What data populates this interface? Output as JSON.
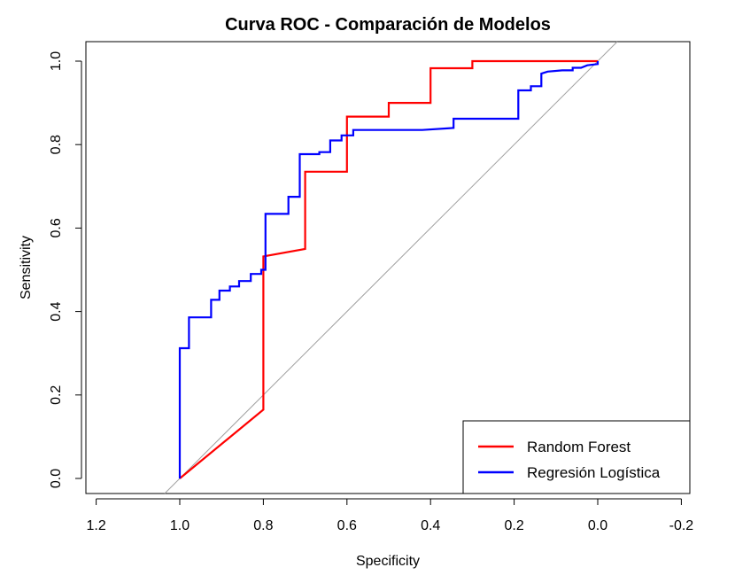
{
  "chart_data": {
    "type": "line",
    "title": "Curva ROC - Comparación de Modelos",
    "xlabel": "Specificity",
    "ylabel": "Sensitivity",
    "xlim": [
      1.2,
      -0.2
    ],
    "ylim": [
      0.0,
      1.0
    ],
    "x_reversed": true,
    "grid": false,
    "legend": "bottom-right",
    "x_ticks": [
      1.2,
      1.0,
      0.8,
      0.6,
      0.4,
      0.2,
      0.0,
      -0.2
    ],
    "x_tick_labels": [
      "1.2",
      "1.0",
      "0.8",
      "0.6",
      "0.4",
      "0.2",
      "0.0",
      "-0.2"
    ],
    "y_ticks": [
      0.0,
      0.2,
      0.4,
      0.6,
      0.8,
      1.0
    ],
    "y_tick_labels": [
      "0.0",
      "0.2",
      "0.4",
      "0.6",
      "0.8",
      "1.0"
    ],
    "reference_line": {
      "from": [
        1.0,
        0.0
      ],
      "to": [
        0.0,
        1.0
      ],
      "color": "#a0a0a0"
    },
    "series": [
      {
        "name": "Random Forest",
        "color": "#ff0000",
        "x": [
          1.0,
          0.8,
          0.8,
          0.7,
          0.7,
          0.6,
          0.6,
          0.5,
          0.5,
          0.4,
          0.4,
          0.3,
          0.3,
          0.0
        ],
        "y": [
          0.0,
          0.165,
          0.532,
          0.55,
          0.735,
          0.735,
          0.867,
          0.867,
          0.9,
          0.9,
          0.983,
          0.983,
          1.0,
          1.0
        ]
      },
      {
        "name": "Regresión Logística",
        "color": "#0000ff",
        "x": [
          1.0,
          1.0,
          0.978,
          0.978,
          0.925,
          0.925,
          0.905,
          0.905,
          0.88,
          0.88,
          0.858,
          0.858,
          0.83,
          0.83,
          0.805,
          0.805,
          0.795,
          0.795,
          0.74,
          0.74,
          0.713,
          0.713,
          0.666,
          0.666,
          0.64,
          0.64,
          0.613,
          0.613,
          0.585,
          0.585,
          0.42,
          0.345,
          0.345,
          0.19,
          0.19,
          0.16,
          0.16,
          0.135,
          0.135,
          0.12,
          0.085,
          0.06,
          0.06,
          0.04,
          0.025,
          0.025,
          0.0,
          0.0
        ],
        "y": [
          0.0,
          0.312,
          0.312,
          0.386,
          0.386,
          0.428,
          0.428,
          0.45,
          0.45,
          0.46,
          0.46,
          0.473,
          0.473,
          0.49,
          0.49,
          0.5,
          0.5,
          0.634,
          0.634,
          0.675,
          0.675,
          0.777,
          0.777,
          0.782,
          0.782,
          0.81,
          0.81,
          0.822,
          0.822,
          0.835,
          0.835,
          0.84,
          0.862,
          0.862,
          0.93,
          0.93,
          0.94,
          0.94,
          0.97,
          0.975,
          0.978,
          0.978,
          0.984,
          0.984,
          0.99,
          0.99,
          0.993,
          1.0
        ]
      }
    ]
  }
}
